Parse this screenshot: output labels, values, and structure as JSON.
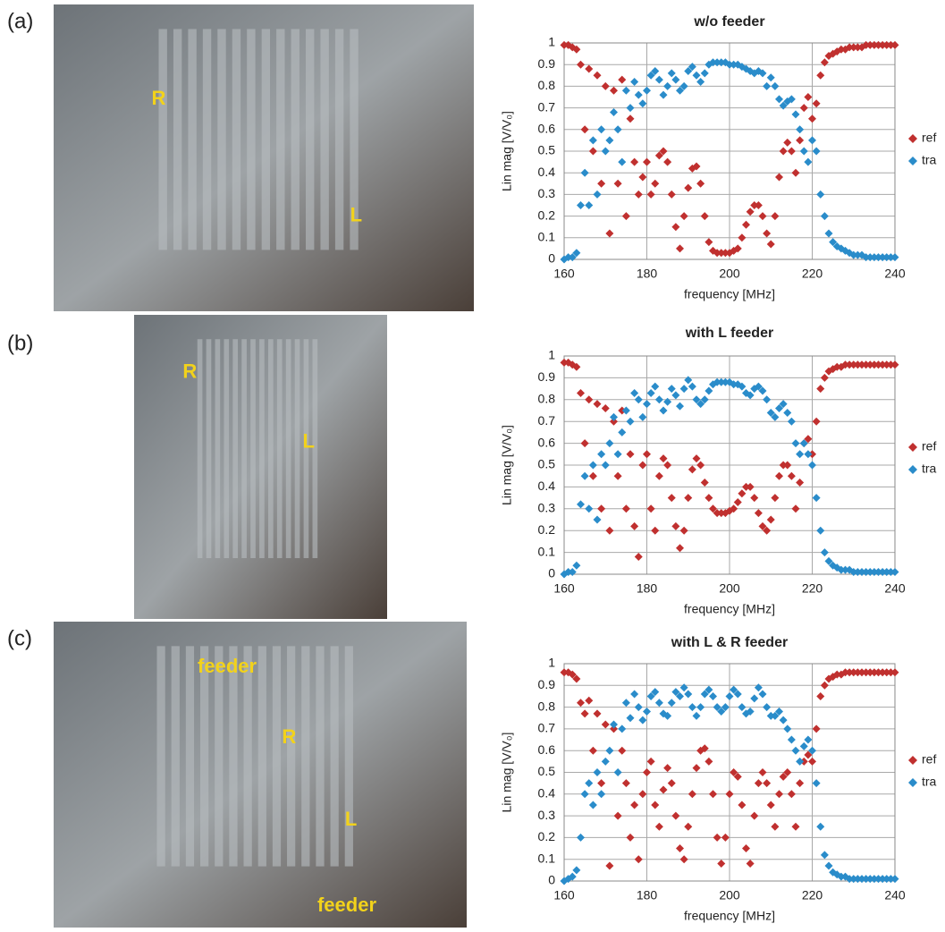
{
  "panels": [
    {
      "label": "(a)",
      "photo_labels": [
        "R",
        "L"
      ]
    },
    {
      "label": "(b)",
      "photo_labels": [
        "R",
        "L"
      ]
    },
    {
      "label": "(c)",
      "photo_labels": [
        "feeder",
        "R",
        "L",
        "feeder"
      ]
    }
  ],
  "chart_data": [
    {
      "type": "scatter",
      "title": "w/o feeder",
      "xlabel": "frequency [MHz]",
      "ylabel": "Lin mag [V/V₀]",
      "xlim": [
        160,
        240
      ],
      "xticks": [
        160,
        180,
        200,
        220,
        240
      ],
      "ylim": [
        0,
        1
      ],
      "yticks": [
        0,
        0.1,
        0.2,
        0.3,
        0.4,
        0.5,
        0.6,
        0.7,
        0.8,
        0.9,
        1
      ],
      "grid": true,
      "legend": "right",
      "x": [
        160,
        161,
        162,
        163,
        164,
        165,
        166,
        167,
        168,
        169,
        170,
        171,
        172,
        173,
        174,
        175,
        176,
        177,
        178,
        179,
        180,
        181,
        182,
        183,
        184,
        185,
        186,
        187,
        188,
        189,
        190,
        191,
        192,
        193,
        194,
        195,
        196,
        197,
        198,
        199,
        200,
        201,
        202,
        203,
        204,
        205,
        206,
        207,
        208,
        209,
        210,
        211,
        212,
        213,
        214,
        215,
        216,
        217,
        218,
        219,
        220,
        221,
        222,
        223,
        224,
        225,
        226,
        227,
        228,
        229,
        230,
        231,
        232,
        233,
        234,
        235,
        236,
        237,
        238,
        239,
        240
      ],
      "series": [
        {
          "name": "ref",
          "color": "#c0302f",
          "values": [
            0.99,
            0.99,
            0.98,
            0.97,
            0.9,
            0.6,
            0.88,
            0.5,
            0.85,
            0.35,
            0.8,
            0.12,
            0.78,
            0.35,
            0.83,
            0.2,
            0.65,
            0.45,
            0.3,
            0.38,
            0.45,
            0.3,
            0.35,
            0.48,
            0.5,
            0.45,
            0.3,
            0.15,
            0.05,
            0.2,
            0.33,
            0.42,
            0.43,
            0.35,
            0.2,
            0.08,
            0.04,
            0.03,
            0.03,
            0.03,
            0.03,
            0.04,
            0.05,
            0.1,
            0.16,
            0.22,
            0.25,
            0.25,
            0.2,
            0.12,
            0.07,
            0.2,
            0.38,
            0.5,
            0.54,
            0.5,
            0.4,
            0.55,
            0.7,
            0.75,
            0.65,
            0.72,
            0.85,
            0.91,
            0.94,
            0.95,
            0.96,
            0.97,
            0.97,
            0.98,
            0.98,
            0.98,
            0.98,
            0.99,
            0.99,
            0.99,
            0.99,
            0.99,
            0.99,
            0.99,
            0.99
          ]
        },
        {
          "name": "tra",
          "color": "#2a8cca",
          "values": [
            0,
            0.01,
            0.01,
            0.03,
            0.25,
            0.4,
            0.25,
            0.55,
            0.3,
            0.6,
            0.5,
            0.55,
            0.68,
            0.6,
            0.45,
            0.78,
            0.7,
            0.82,
            0.76,
            0.72,
            0.78,
            0.85,
            0.87,
            0.83,
            0.76,
            0.8,
            0.86,
            0.83,
            0.78,
            0.8,
            0.87,
            0.89,
            0.85,
            0.82,
            0.86,
            0.9,
            0.91,
            0.91,
            0.91,
            0.91,
            0.9,
            0.9,
            0.9,
            0.89,
            0.88,
            0.87,
            0.86,
            0.87,
            0.86,
            0.8,
            0.84,
            0.8,
            0.74,
            0.71,
            0.73,
            0.74,
            0.67,
            0.6,
            0.5,
            0.45,
            0.55,
            0.5,
            0.3,
            0.2,
            0.12,
            0.08,
            0.06,
            0.05,
            0.04,
            0.03,
            0.02,
            0.02,
            0.02,
            0.01,
            0.01,
            0.01,
            0.01,
            0.01,
            0.01,
            0.01,
            0.01
          ]
        }
      ]
    },
    {
      "type": "scatter",
      "title": "with L feeder",
      "xlabel": "frequency [MHz]",
      "ylabel": "Lin mag [V/V₀]",
      "xlim": [
        160,
        240
      ],
      "xticks": [
        160,
        180,
        200,
        220,
        240
      ],
      "ylim": [
        0,
        1
      ],
      "yticks": [
        0,
        0.1,
        0.2,
        0.3,
        0.4,
        0.5,
        0.6,
        0.7,
        0.8,
        0.9,
        1
      ],
      "grid": true,
      "legend": "right",
      "x": [
        160,
        161,
        162,
        163,
        164,
        165,
        166,
        167,
        168,
        169,
        170,
        171,
        172,
        173,
        174,
        175,
        176,
        177,
        178,
        179,
        180,
        181,
        182,
        183,
        184,
        185,
        186,
        187,
        188,
        189,
        190,
        191,
        192,
        193,
        194,
        195,
        196,
        197,
        198,
        199,
        200,
        201,
        202,
        203,
        204,
        205,
        206,
        207,
        208,
        209,
        210,
        211,
        212,
        213,
        214,
        215,
        216,
        217,
        218,
        219,
        220,
        221,
        222,
        223,
        224,
        225,
        226,
        227,
        228,
        229,
        230,
        231,
        232,
        233,
        234,
        235,
        236,
        237,
        238,
        239,
        240
      ],
      "series": [
        {
          "name": "ref",
          "color": "#c0302f",
          "values": [
            0.97,
            0.97,
            0.96,
            0.95,
            0.83,
            0.6,
            0.8,
            0.45,
            0.78,
            0.3,
            0.76,
            0.2,
            0.7,
            0.45,
            0.75,
            0.3,
            0.55,
            0.22,
            0.08,
            0.5,
            0.55,
            0.3,
            0.2,
            0.45,
            0.53,
            0.5,
            0.35,
            0.22,
            0.12,
            0.2,
            0.35,
            0.48,
            0.53,
            0.5,
            0.42,
            0.35,
            0.3,
            0.28,
            0.28,
            0.28,
            0.29,
            0.3,
            0.33,
            0.37,
            0.4,
            0.4,
            0.35,
            0.28,
            0.22,
            0.2,
            0.25,
            0.35,
            0.45,
            0.5,
            0.5,
            0.45,
            0.3,
            0.42,
            0.6,
            0.62,
            0.55,
            0.7,
            0.85,
            0.9,
            0.93,
            0.94,
            0.95,
            0.95,
            0.96,
            0.96,
            0.96,
            0.96,
            0.96,
            0.96,
            0.96,
            0.96,
            0.96,
            0.96,
            0.96,
            0.96,
            0.96
          ]
        },
        {
          "name": "tra",
          "color": "#2a8cca",
          "values": [
            0,
            0.01,
            0.01,
            0.04,
            0.32,
            0.45,
            0.3,
            0.5,
            0.25,
            0.55,
            0.5,
            0.6,
            0.72,
            0.55,
            0.65,
            0.75,
            0.7,
            0.83,
            0.8,
            0.72,
            0.78,
            0.83,
            0.86,
            0.8,
            0.75,
            0.79,
            0.85,
            0.82,
            0.77,
            0.85,
            0.89,
            0.86,
            0.8,
            0.78,
            0.8,
            0.84,
            0.87,
            0.88,
            0.88,
            0.88,
            0.88,
            0.87,
            0.87,
            0.86,
            0.83,
            0.82,
            0.85,
            0.86,
            0.84,
            0.8,
            0.74,
            0.72,
            0.76,
            0.78,
            0.74,
            0.7,
            0.6,
            0.55,
            0.6,
            0.55,
            0.5,
            0.35,
            0.2,
            0.1,
            0.06,
            0.04,
            0.03,
            0.02,
            0.02,
            0.02,
            0.01,
            0.01,
            0.01,
            0.01,
            0.01,
            0.01,
            0.01,
            0.01,
            0.01,
            0.01,
            0.01
          ]
        }
      ]
    },
    {
      "type": "scatter",
      "title": "with L & R feeder",
      "xlabel": "frequency [MHz]",
      "ylabel": "Lin mag [V/V₀]",
      "xlim": [
        160,
        240
      ],
      "xticks": [
        160,
        180,
        200,
        220,
        240
      ],
      "ylim": [
        0,
        1
      ],
      "yticks": [
        0,
        0.1,
        0.2,
        0.3,
        0.4,
        0.5,
        0.6,
        0.7,
        0.8,
        0.9,
        1
      ],
      "grid": true,
      "legend": "right",
      "x": [
        160,
        161,
        162,
        163,
        164,
        165,
        166,
        167,
        168,
        169,
        170,
        171,
        172,
        173,
        174,
        175,
        176,
        177,
        178,
        179,
        180,
        181,
        182,
        183,
        184,
        185,
        186,
        187,
        188,
        189,
        190,
        191,
        192,
        193,
        194,
        195,
        196,
        197,
        198,
        199,
        200,
        201,
        202,
        203,
        204,
        205,
        206,
        207,
        208,
        209,
        210,
        211,
        212,
        213,
        214,
        215,
        216,
        217,
        218,
        219,
        220,
        221,
        222,
        223,
        224,
        225,
        226,
        227,
        228,
        229,
        230,
        231,
        232,
        233,
        234,
        235,
        236,
        237,
        238,
        239,
        240
      ],
      "series": [
        {
          "name": "ref",
          "color": "#c0302f",
          "values": [
            0.96,
            0.96,
            0.95,
            0.93,
            0.82,
            0.77,
            0.83,
            0.6,
            0.77,
            0.45,
            0.72,
            0.07,
            0.7,
            0.3,
            0.6,
            0.45,
            0.2,
            0.35,
            0.1,
            0.4,
            0.5,
            0.55,
            0.35,
            0.25,
            0.42,
            0.52,
            0.45,
            0.3,
            0.15,
            0.1,
            0.25,
            0.4,
            0.52,
            0.6,
            0.61,
            0.55,
            0.4,
            0.2,
            0.08,
            0.2,
            0.4,
            0.5,
            0.48,
            0.35,
            0.15,
            0.08,
            0.3,
            0.45,
            0.5,
            0.45,
            0.35,
            0.25,
            0.4,
            0.48,
            0.5,
            0.4,
            0.25,
            0.45,
            0.55,
            0.58,
            0.55,
            0.7,
            0.85,
            0.9,
            0.93,
            0.94,
            0.95,
            0.95,
            0.96,
            0.96,
            0.96,
            0.96,
            0.96,
            0.96,
            0.96,
            0.96,
            0.96,
            0.96,
            0.96,
            0.96,
            0.96
          ]
        },
        {
          "name": "tra",
          "color": "#2a8cca",
          "values": [
            0,
            0.01,
            0.02,
            0.05,
            0.2,
            0.4,
            0.45,
            0.35,
            0.5,
            0.4,
            0.55,
            0.6,
            0.72,
            0.5,
            0.7,
            0.82,
            0.75,
            0.86,
            0.8,
            0.74,
            0.78,
            0.85,
            0.87,
            0.82,
            0.77,
            0.76,
            0.82,
            0.87,
            0.85,
            0.89,
            0.86,
            0.8,
            0.76,
            0.8,
            0.86,
            0.88,
            0.85,
            0.8,
            0.78,
            0.8,
            0.85,
            0.88,
            0.86,
            0.8,
            0.77,
            0.78,
            0.84,
            0.89,
            0.86,
            0.8,
            0.76,
            0.76,
            0.78,
            0.74,
            0.7,
            0.65,
            0.6,
            0.55,
            0.62,
            0.65,
            0.6,
            0.45,
            0.25,
            0.12,
            0.07,
            0.04,
            0.03,
            0.02,
            0.02,
            0.01,
            0.01,
            0.01,
            0.01,
            0.01,
            0.01,
            0.01,
            0.01,
            0.01,
            0.01,
            0.01,
            0.01
          ]
        }
      ]
    }
  ]
}
